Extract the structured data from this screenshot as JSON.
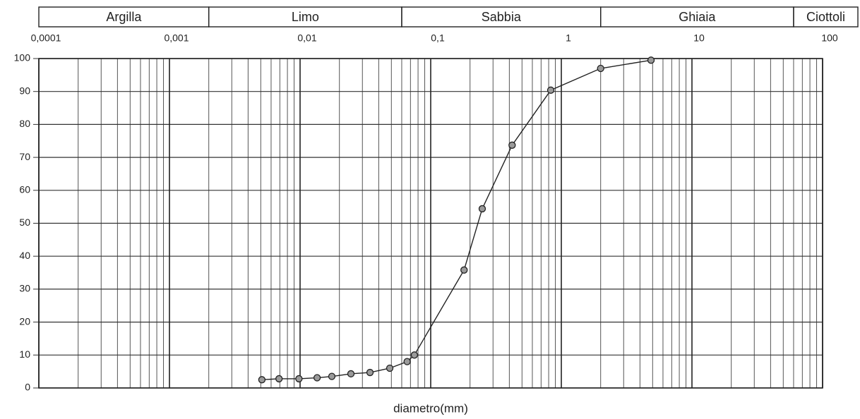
{
  "chart_data": {
    "type": "line",
    "x_label": "diametro(mm)",
    "x": [
      0.0051,
      0.0069,
      0.0098,
      0.0135,
      0.0175,
      0.0245,
      0.0343,
      0.0486,
      0.066,
      0.075,
      0.18,
      0.248,
      0.42,
      0.83,
      2.0,
      4.86
    ],
    "values": [
      2.5,
      2.8,
      2.8,
      3.1,
      3.5,
      4.3,
      4.7,
      6,
      8,
      10,
      35.8,
      54.4,
      73.7,
      90.4,
      97,
      99.5
    ],
    "color": "#222222",
    "marker_color": "#9a9a9a",
    "xscale": "log",
    "xlim": [
      0.0001,
      100
    ],
    "xticks": [
      {
        "value": 0.0001,
        "label": "0,0001"
      },
      {
        "value": 0.001,
        "label": "0,001"
      },
      {
        "value": 0.01,
        "label": "0,01"
      },
      {
        "value": 0.1,
        "label": "0,1"
      },
      1,
      10,
      100
    ],
    "ylim": [
      0,
      100
    ],
    "yticks": [
      0,
      10,
      20,
      30,
      40,
      50,
      60,
      70,
      80,
      90,
      100
    ],
    "grid": true,
    "bands": [
      {
        "label": "Argilla",
        "from": 0.0001,
        "to": 0.002
      },
      {
        "label": "Limo",
        "from": 0.002,
        "to": 0.06
      },
      {
        "label": "Sabbia",
        "from": 0.06,
        "to": 2
      },
      {
        "label": "Ghiaia",
        "from": 2,
        "to": 60
      },
      {
        "label": "Ciottoli",
        "from": 60,
        "to": 100
      }
    ]
  }
}
